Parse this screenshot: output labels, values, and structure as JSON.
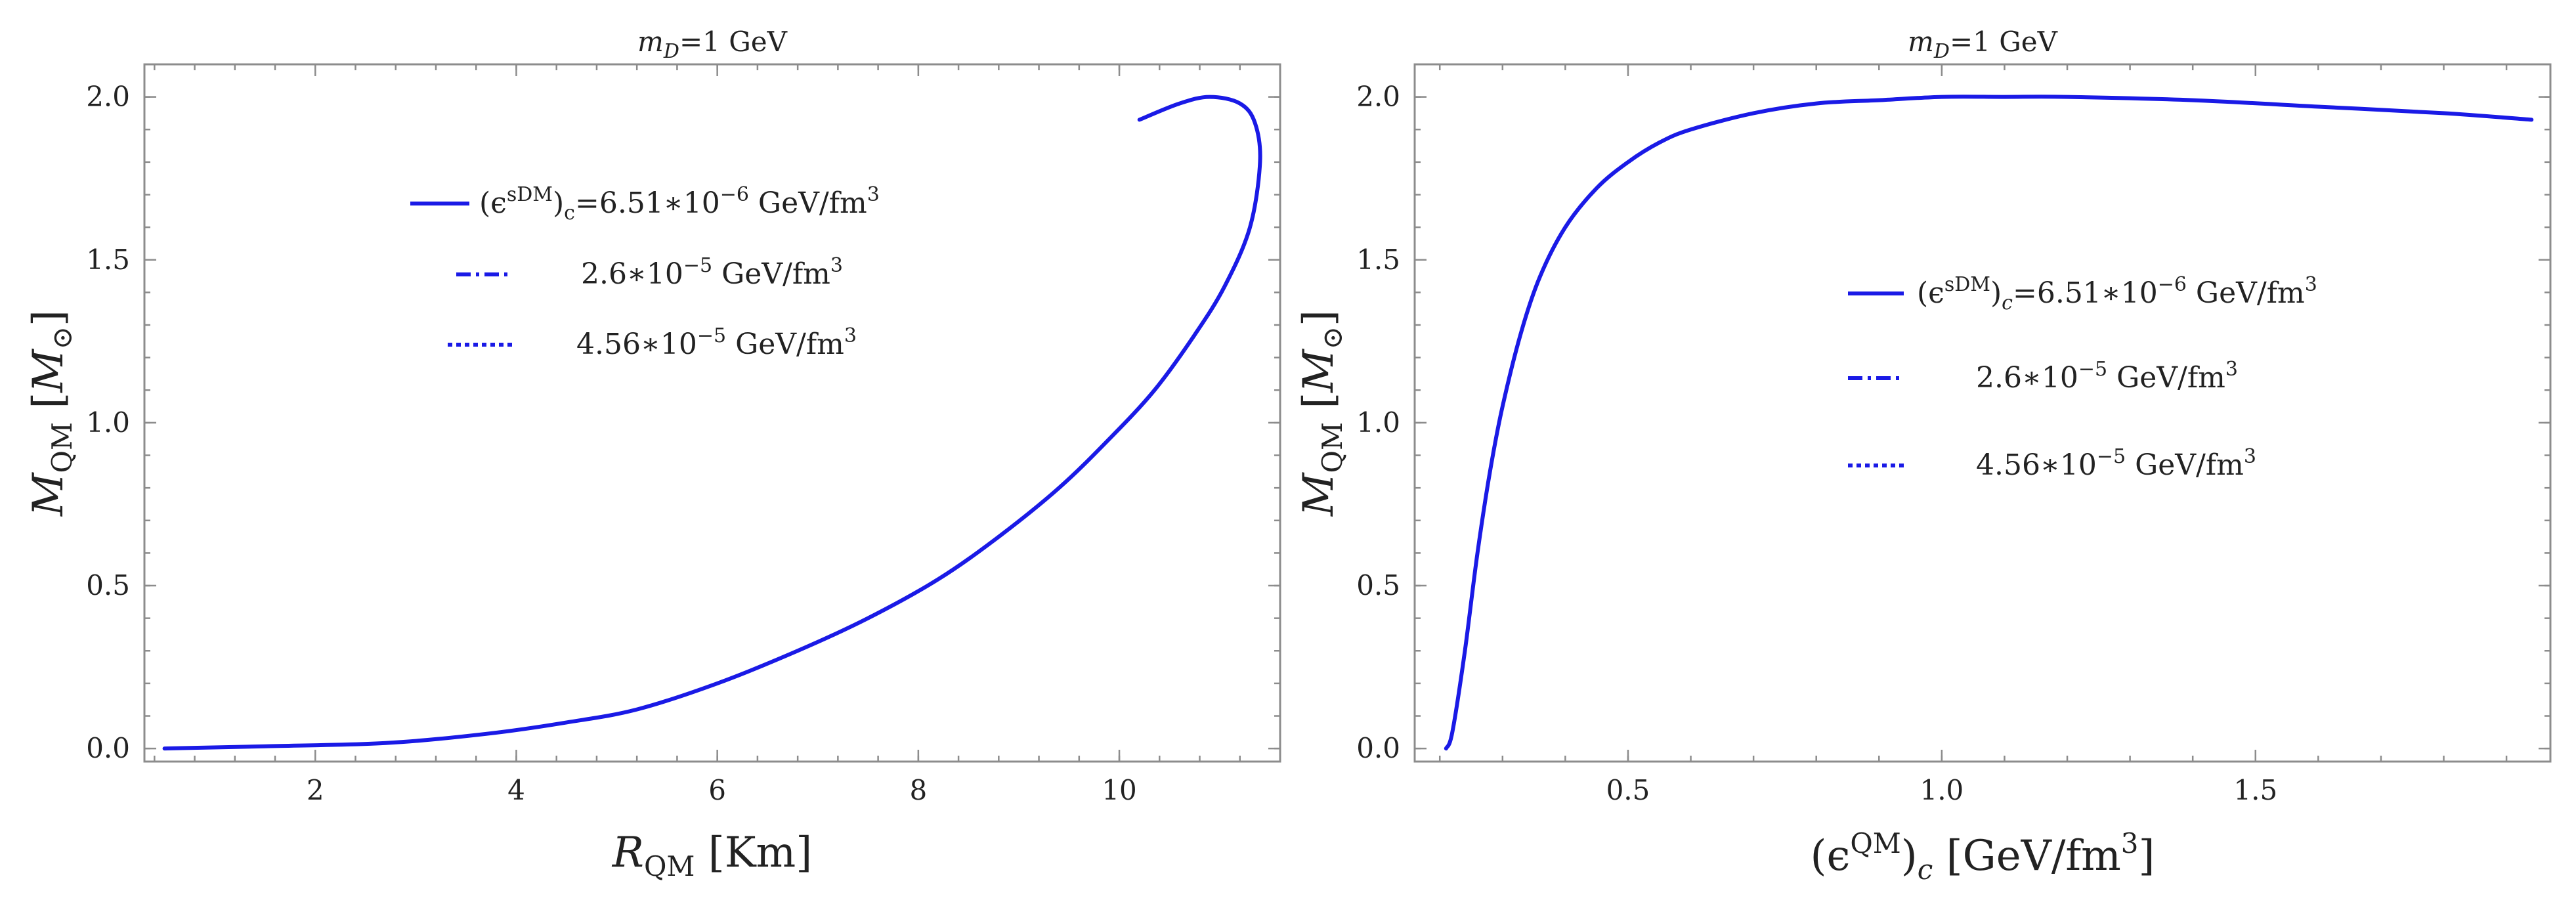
{
  "chart_data": [
    {
      "type": "line",
      "title": "m_D=1 GeV",
      "xlabel": "R_QM [Km]",
      "ylabel": "M_QM [M_⊙]",
      "xlim": [
        0.3,
        11.6
      ],
      "ylim": [
        -0.04,
        2.1
      ],
      "xticks": [
        2,
        4,
        6,
        8,
        10
      ],
      "yticks": [
        0.0,
        0.5,
        1.0,
        1.5,
        2.0
      ],
      "xtick_labels": [
        "2",
        "4",
        "6",
        "8",
        "10"
      ],
      "ytick_labels": [
        "0.0",
        "0.5",
        "1.0",
        "1.5",
        "2.0"
      ],
      "legend_position": "top-center",
      "series": [
        {
          "name": "(ϵ^sDM)_c=6.51∗10^-6 GeV/fm^3",
          "style": "solid",
          "x": [
            0.5,
            1.5,
            2.7,
            3.7,
            4.5,
            5.2,
            6.0,
            6.8,
            7.5,
            8.2,
            8.8,
            9.4,
            9.9,
            10.35,
            10.75,
            11.05,
            11.3,
            11.4,
            11.35,
            11.2,
            10.9,
            10.6,
            10.2
          ],
          "y": [
            0.0,
            0.007,
            0.017,
            0.045,
            0.08,
            0.12,
            0.2,
            0.3,
            0.4,
            0.52,
            0.65,
            0.8,
            0.95,
            1.1,
            1.27,
            1.42,
            1.6,
            1.8,
            1.92,
            1.98,
            2.0,
            1.98,
            1.93
          ]
        },
        {
          "name": "2.6∗10^-5 GeV/fm^3",
          "style": "dashdot",
          "x": [],
          "y": []
        },
        {
          "name": "4.56∗10^-5 GeV/fm^3",
          "style": "dotted",
          "x": [],
          "y": []
        }
      ]
    },
    {
      "type": "line",
      "title": "m_D=1 GeV",
      "xlabel": "(ϵ^QM)_c [GeV/fm^3]",
      "ylabel": "M_QM [M_⊙]",
      "xlim": [
        0.16,
        1.97
      ],
      "ylim": [
        -0.04,
        2.1
      ],
      "xticks": [
        0.5,
        1.0,
        1.5
      ],
      "yticks": [
        0.0,
        0.5,
        1.0,
        1.5,
        2.0
      ],
      "xtick_labels": [
        "0.5",
        "1.0",
        "1.5"
      ],
      "ytick_labels": [
        "0.0",
        "0.5",
        "1.0",
        "1.5",
        "2.0"
      ],
      "legend_position": "center-right",
      "series": [
        {
          "name": "(ϵ^sDM)_c=6.51∗10^-6 GeV/fm^3",
          "style": "solid",
          "x": [
            0.21,
            0.22,
            0.24,
            0.26,
            0.28,
            0.3,
            0.33,
            0.36,
            0.4,
            0.45,
            0.5,
            0.55,
            0.6,
            0.7,
            0.8,
            0.9,
            1.0,
            1.1,
            1.2,
            1.4,
            1.6,
            1.8,
            1.94
          ],
          "y": [
            0.0,
            0.05,
            0.3,
            0.6,
            0.85,
            1.05,
            1.28,
            1.45,
            1.6,
            1.72,
            1.8,
            1.86,
            1.9,
            1.95,
            1.98,
            1.99,
            2.0,
            2.0,
            2.0,
            1.99,
            1.97,
            1.95,
            1.93
          ]
        },
        {
          "name": "2.6∗10^-5 GeV/fm^3",
          "style": "dashdot",
          "x": [],
          "y": []
        },
        {
          "name": "4.56∗10^-5 GeV/fm^3",
          "style": "dotted",
          "x": [],
          "y": []
        }
      ]
    }
  ],
  "colors": {
    "curve": "#1a1ae6",
    "frame": "#8c8c8c"
  }
}
